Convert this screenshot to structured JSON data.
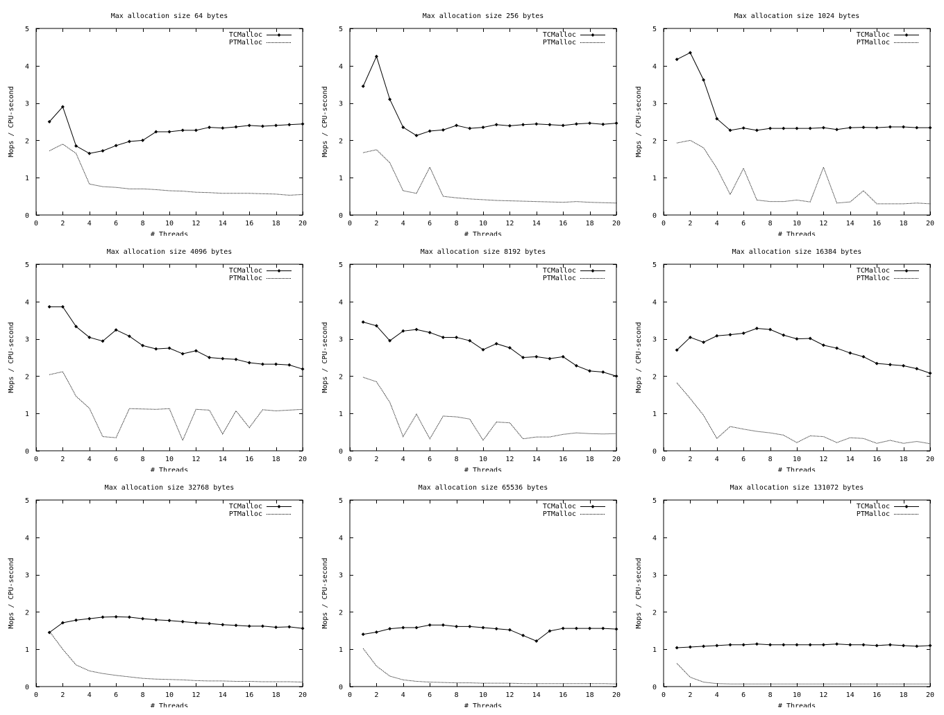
{
  "chart_data": [
    {
      "type": "line",
      "title": "Max allocation size 64 bytes",
      "xlabel": "# Threads",
      "ylabel": "Mops / CPU-second",
      "xlim": [
        0,
        20
      ],
      "ylim": [
        0,
        5
      ],
      "xticks": [
        0,
        2,
        4,
        6,
        8,
        10,
        12,
        14,
        16,
        18,
        20
      ],
      "yticks": [
        0,
        1,
        2,
        3,
        4,
        5
      ],
      "legend": "top-right",
      "x": [
        1,
        2,
        3,
        4,
        5,
        6,
        7,
        8,
        9,
        10,
        11,
        12,
        13,
        14,
        15,
        16,
        17,
        18,
        19,
        20
      ],
      "series": [
        {
          "name": "TCMalloc",
          "style": "solid-markers",
          "values": [
            2.5,
            2.9,
            1.85,
            1.65,
            1.72,
            1.86,
            1.97,
            2.0,
            2.23,
            2.23,
            2.27,
            2.27,
            2.35,
            2.33,
            2.36,
            2.4,
            2.38,
            2.4,
            2.42,
            2.44
          ]
        },
        {
          "name": "PTMalloc",
          "style": "dotted",
          "values": [
            1.72,
            1.9,
            1.65,
            0.83,
            0.76,
            0.74,
            0.7,
            0.7,
            0.68,
            0.65,
            0.64,
            0.61,
            0.6,
            0.58,
            0.58,
            0.58,
            0.57,
            0.56,
            0.53,
            0.55
          ]
        }
      ]
    },
    {
      "type": "line",
      "title": "Max allocation size 256 bytes",
      "xlabel": "# Threads",
      "ylabel": "Mops / CPU-second",
      "xlim": [
        0,
        20
      ],
      "ylim": [
        0,
        5
      ],
      "xticks": [
        0,
        2,
        4,
        6,
        8,
        10,
        12,
        14,
        16,
        18,
        20
      ],
      "yticks": [
        0,
        1,
        2,
        3,
        4,
        5
      ],
      "legend": "top-right",
      "x": [
        1,
        2,
        3,
        4,
        5,
        6,
        7,
        8,
        9,
        10,
        11,
        12,
        13,
        14,
        15,
        16,
        17,
        18,
        19,
        20
      ],
      "series": [
        {
          "name": "TCMalloc",
          "style": "solid-markers",
          "values": [
            3.45,
            4.25,
            3.1,
            2.35,
            2.13,
            2.25,
            2.28,
            2.4,
            2.32,
            2.35,
            2.42,
            2.39,
            2.42,
            2.44,
            2.42,
            2.4,
            2.44,
            2.46,
            2.43,
            2.46
          ]
        },
        {
          "name": "PTMalloc",
          "style": "dotted",
          "values": [
            1.67,
            1.75,
            1.4,
            0.65,
            0.58,
            1.28,
            0.5,
            0.46,
            0.43,
            0.41,
            0.39,
            0.38,
            0.37,
            0.36,
            0.35,
            0.34,
            0.36,
            0.34,
            0.33,
            0.32
          ]
        }
      ]
    },
    {
      "type": "line",
      "title": "Max allocation size 1024 bytes",
      "xlabel": "# Threads",
      "ylabel": "Mops / CPU-second",
      "xlim": [
        0,
        20
      ],
      "ylim": [
        0,
        5
      ],
      "xticks": [
        0,
        2,
        4,
        6,
        8,
        10,
        12,
        14,
        16,
        18,
        20
      ],
      "yticks": [
        0,
        1,
        2,
        3,
        4,
        5
      ],
      "legend": "top-right",
      "x": [
        1,
        2,
        3,
        4,
        5,
        6,
        7,
        8,
        9,
        10,
        11,
        12,
        13,
        14,
        15,
        16,
        17,
        18,
        19,
        20
      ],
      "series": [
        {
          "name": "TCMalloc",
          "style": "solid-markers",
          "values": [
            4.17,
            4.35,
            3.62,
            2.58,
            2.27,
            2.33,
            2.27,
            2.32,
            2.32,
            2.32,
            2.32,
            2.34,
            2.29,
            2.34,
            2.35,
            2.34,
            2.36,
            2.36,
            2.34,
            2.34
          ]
        },
        {
          "name": "PTMalloc",
          "style": "dotted",
          "values": [
            1.93,
            2.0,
            1.8,
            1.25,
            0.55,
            1.25,
            0.4,
            0.36,
            0.36,
            0.4,
            0.35,
            1.28,
            0.32,
            0.35,
            0.65,
            0.3,
            0.3,
            0.3,
            0.32,
            0.3
          ]
        }
      ]
    },
    {
      "type": "line",
      "title": "Max allocation size 4096 bytes",
      "xlabel": "# Threads",
      "ylabel": "Mops / CPU-second",
      "xlim": [
        0,
        20
      ],
      "ylim": [
        0,
        5
      ],
      "xticks": [
        0,
        2,
        4,
        6,
        8,
        10,
        12,
        14,
        16,
        18,
        20
      ],
      "yticks": [
        0,
        1,
        2,
        3,
        4,
        5
      ],
      "legend": "top-right",
      "x": [
        1,
        2,
        3,
        4,
        5,
        6,
        7,
        8,
        9,
        10,
        11,
        12,
        13,
        14,
        15,
        16,
        17,
        18,
        19,
        20
      ],
      "series": [
        {
          "name": "TCMalloc",
          "style": "solid-markers",
          "values": [
            3.86,
            3.86,
            3.33,
            3.04,
            2.94,
            3.24,
            3.07,
            2.82,
            2.73,
            2.75,
            2.6,
            2.68,
            2.5,
            2.47,
            2.45,
            2.36,
            2.32,
            2.32,
            2.3,
            2.19
          ]
        },
        {
          "name": "PTMalloc",
          "style": "dotted",
          "values": [
            2.04,
            2.12,
            1.46,
            1.14,
            0.38,
            0.35,
            1.13,
            1.12,
            1.11,
            1.13,
            0.28,
            1.11,
            1.09,
            0.45,
            1.07,
            0.62,
            1.1,
            1.07,
            1.09,
            1.11
          ]
        }
      ]
    },
    {
      "type": "line",
      "title": "Max allocation size 8192 bytes",
      "xlabel": "# Threads",
      "ylabel": "Mops / CPU-second",
      "xlim": [
        0,
        20
      ],
      "ylim": [
        0,
        5
      ],
      "xticks": [
        0,
        2,
        4,
        6,
        8,
        10,
        12,
        14,
        16,
        18,
        20
      ],
      "yticks": [
        0,
        1,
        2,
        3,
        4,
        5
      ],
      "legend": "top-right",
      "x": [
        1,
        2,
        3,
        4,
        5,
        6,
        7,
        8,
        9,
        10,
        11,
        12,
        13,
        14,
        15,
        16,
        17,
        18,
        19,
        20
      ],
      "series": [
        {
          "name": "TCMalloc",
          "style": "solid-markers",
          "values": [
            3.45,
            3.35,
            2.95,
            3.21,
            3.25,
            3.17,
            3.04,
            3.04,
            2.95,
            2.71,
            2.87,
            2.76,
            2.5,
            2.52,
            2.47,
            2.52,
            2.28,
            2.14,
            2.11,
            2.0
          ]
        },
        {
          "name": "PTMalloc",
          "style": "dotted",
          "values": [
            1.97,
            1.85,
            1.3,
            0.38,
            0.98,
            0.32,
            0.93,
            0.91,
            0.85,
            0.28,
            0.77,
            0.75,
            0.32,
            0.37,
            0.37,
            0.44,
            0.48,
            0.46,
            0.45,
            0.46
          ]
        }
      ]
    },
    {
      "type": "line",
      "title": "Max allocation size 16384 bytes",
      "xlabel": "# Threads",
      "ylabel": "Mops / CPU-second",
      "xlim": [
        0,
        20
      ],
      "ylim": [
        0,
        5
      ],
      "xticks": [
        0,
        2,
        4,
        6,
        8,
        10,
        12,
        14,
        16,
        18,
        20
      ],
      "yticks": [
        0,
        1,
        2,
        3,
        4,
        5
      ],
      "legend": "top-right",
      "x": [
        1,
        2,
        3,
        4,
        5,
        6,
        7,
        8,
        9,
        10,
        11,
        12,
        13,
        14,
        15,
        16,
        17,
        18,
        19,
        20
      ],
      "series": [
        {
          "name": "TCMalloc",
          "style": "solid-markers",
          "values": [
            2.7,
            3.04,
            2.91,
            3.08,
            3.11,
            3.15,
            3.28,
            3.25,
            3.1,
            3.0,
            3.01,
            2.83,
            2.75,
            2.62,
            2.52,
            2.34,
            2.31,
            2.28,
            2.2,
            2.08
          ]
        },
        {
          "name": "PTMalloc",
          "style": "dotted",
          "values": [
            1.82,
            1.4,
            0.95,
            0.33,
            0.65,
            0.58,
            0.52,
            0.48,
            0.42,
            0.22,
            0.4,
            0.38,
            0.22,
            0.35,
            0.33,
            0.2,
            0.28,
            0.2,
            0.25,
            0.19
          ]
        }
      ]
    },
    {
      "type": "line",
      "title": "Max allocation size 32768 bytes",
      "xlabel": "# Threads",
      "ylabel": "Mops / CPU-second",
      "xlim": [
        0,
        20
      ],
      "ylim": [
        0,
        5
      ],
      "xticks": [
        0,
        2,
        4,
        6,
        8,
        10,
        12,
        14,
        16,
        18,
        20
      ],
      "yticks": [
        0,
        1,
        2,
        3,
        4,
        5
      ],
      "legend": "top-right",
      "x": [
        1,
        2,
        3,
        4,
        5,
        6,
        7,
        8,
        9,
        10,
        11,
        12,
        13,
        14,
        15,
        16,
        17,
        18,
        19,
        20
      ],
      "series": [
        {
          "name": "TCMalloc",
          "style": "solid-markers",
          "values": [
            1.45,
            1.71,
            1.78,
            1.82,
            1.86,
            1.87,
            1.86,
            1.82,
            1.79,
            1.77,
            1.74,
            1.71,
            1.69,
            1.66,
            1.64,
            1.62,
            1.62,
            1.59,
            1.6,
            1.56
          ]
        },
        {
          "name": "PTMalloc",
          "style": "dotted",
          "values": [
            1.48,
            1.0,
            0.58,
            0.42,
            0.35,
            0.3,
            0.26,
            0.22,
            0.2,
            0.19,
            0.18,
            0.16,
            0.15,
            0.15,
            0.14,
            0.14,
            0.13,
            0.13,
            0.13,
            0.12
          ]
        }
      ]
    },
    {
      "type": "line",
      "title": "Max allocation size 65536 bytes",
      "xlabel": "# Threads",
      "ylabel": "Mops / CPU-second",
      "xlim": [
        0,
        20
      ],
      "ylim": [
        0,
        5
      ],
      "xticks": [
        0,
        2,
        4,
        6,
        8,
        10,
        12,
        14,
        16,
        18,
        20
      ],
      "yticks": [
        0,
        1,
        2,
        3,
        4,
        5
      ],
      "legend": "top-right",
      "x": [
        1,
        2,
        3,
        4,
        5,
        6,
        7,
        8,
        9,
        10,
        11,
        12,
        13,
        14,
        15,
        16,
        17,
        18,
        19,
        20
      ],
      "series": [
        {
          "name": "TCMalloc",
          "style": "solid-markers",
          "values": [
            1.4,
            1.46,
            1.55,
            1.58,
            1.58,
            1.65,
            1.65,
            1.61,
            1.61,
            1.58,
            1.55,
            1.52,
            1.37,
            1.22,
            1.49,
            1.56,
            1.56,
            1.56,
            1.56,
            1.54
          ]
        },
        {
          "name": "PTMalloc",
          "style": "dotted",
          "values": [
            1.02,
            0.55,
            0.28,
            0.18,
            0.14,
            0.12,
            0.11,
            0.1,
            0.1,
            0.09,
            0.09,
            0.09,
            0.08,
            0.08,
            0.08,
            0.08,
            0.08,
            0.08,
            0.08,
            0.07
          ]
        }
      ]
    },
    {
      "type": "line",
      "title": "Max allocation size 131072 bytes",
      "xlabel": "# Threads",
      "ylabel": "Mops / CPU-second",
      "xlim": [
        0,
        20
      ],
      "ylim": [
        0,
        5
      ],
      "xticks": [
        0,
        2,
        4,
        6,
        8,
        10,
        12,
        14,
        16,
        18,
        20
      ],
      "yticks": [
        0,
        1,
        2,
        3,
        4,
        5
      ],
      "legend": "top-right",
      "x": [
        1,
        2,
        3,
        4,
        5,
        6,
        7,
        8,
        9,
        10,
        11,
        12,
        13,
        14,
        15,
        16,
        17,
        18,
        19,
        20
      ],
      "series": [
        {
          "name": "TCMalloc",
          "style": "solid-markers",
          "values": [
            1.04,
            1.06,
            1.08,
            1.1,
            1.12,
            1.12,
            1.14,
            1.12,
            1.12,
            1.12,
            1.12,
            1.12,
            1.14,
            1.12,
            1.12,
            1.1,
            1.12,
            1.1,
            1.08,
            1.1
          ]
        },
        {
          "name": "PTMalloc",
          "style": "dotted",
          "values": [
            0.62,
            0.25,
            0.12,
            0.08,
            0.07,
            0.07,
            0.07,
            0.07,
            0.07,
            0.07,
            0.07,
            0.07,
            0.07,
            0.07,
            0.07,
            0.07,
            0.07,
            0.07,
            0.07,
            0.07
          ]
        }
      ]
    }
  ]
}
